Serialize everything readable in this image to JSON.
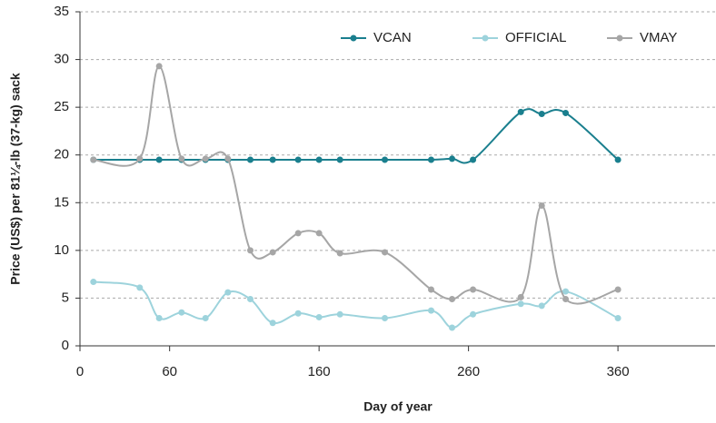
{
  "chart_data": {
    "type": "line",
    "x_label": "Day of year",
    "y_label": "Price (US$) per 81¼-lb (37-kg) sack",
    "x": [
      9,
      40,
      53,
      68,
      84,
      99,
      114,
      129,
      146,
      160,
      174,
      204,
      235,
      249,
      263,
      295,
      309,
      325,
      360
    ],
    "series": [
      {
        "name": "VCAN",
        "color": "#1a7f8e",
        "values": [
          19.5,
          19.5,
          19.5,
          19.5,
          19.5,
          19.5,
          19.5,
          19.5,
          19.5,
          19.5,
          19.5,
          19.5,
          19.5,
          19.6,
          19.5,
          24.5,
          24.3,
          24.4,
          19.5
        ]
      },
      {
        "name": "OFFICIAL",
        "color": "#9dd3dc",
        "values": [
          6.7,
          6.1,
          2.9,
          3.5,
          2.9,
          5.6,
          4.9,
          2.4,
          3.4,
          3.0,
          3.3,
          2.9,
          3.7,
          1.9,
          3.3,
          4.4,
          4.2,
          5.7,
          2.9
        ]
      },
      {
        "name": "VMAY",
        "color": "#a6a6a6",
        "values": [
          19.5,
          19.6,
          29.3,
          19.6,
          19.6,
          19.6,
          10.0,
          9.8,
          11.8,
          11.8,
          9.7,
          9.8,
          5.9,
          4.9,
          5.9,
          5.1,
          14.7,
          4.9,
          5.9
        ]
      }
    ],
    "xlim": [
      0,
      425
    ],
    "xticks": [
      0,
      60,
      160,
      260,
      360
    ],
    "ylim": [
      0,
      35
    ],
    "yticks": [
      0,
      5,
      10,
      15,
      20,
      25,
      30,
      35
    ],
    "grid": true,
    "legend": "top-right"
  }
}
